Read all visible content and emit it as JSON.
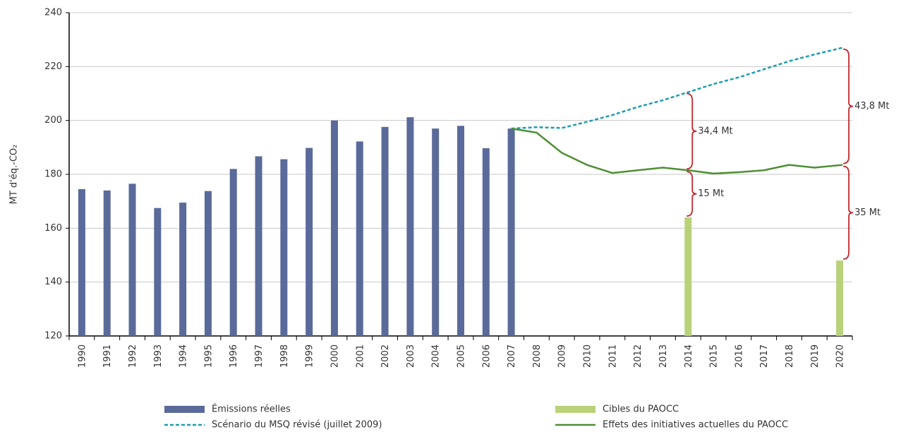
{
  "chart_data": {
    "type": "bar",
    "y_label": "MT d'éq.-CO₂",
    "categories": [
      "1990",
      "1991",
      "1992",
      "1993",
      "1994",
      "1995",
      "1996",
      "1997",
      "1998",
      "1999",
      "2000",
      "2001",
      "2002",
      "2003",
      "2004",
      "2005",
      "2006",
      "2007",
      "2008",
      "2009",
      "2010",
      "2011",
      "2012",
      "2013",
      "2014",
      "2015",
      "2016",
      "2017",
      "2018",
      "2019",
      "2020"
    ],
    "ylim": [
      120,
      240
    ],
    "yticks": [
      120,
      140,
      160,
      180,
      200,
      220,
      240
    ],
    "grid": true,
    "series": [
      {
        "name": "Émissions réelles",
        "kind": "bar",
        "color": "#5a6a9a",
        "values": [
          174.5,
          174,
          176.5,
          167.5,
          169.5,
          173.8,
          182,
          186.7,
          185.6,
          189.8,
          200,
          192.2,
          197.6,
          201.2,
          197,
          198,
          189.7,
          197,
          null,
          null,
          null,
          null,
          null,
          null,
          null,
          null,
          null,
          null,
          null,
          null,
          null
        ]
      },
      {
        "name": "Cibles du PAOCC",
        "kind": "bar",
        "color": "#b9d27a",
        "values": [
          null,
          null,
          null,
          null,
          null,
          null,
          null,
          null,
          null,
          null,
          null,
          null,
          null,
          null,
          null,
          null,
          null,
          null,
          null,
          null,
          null,
          null,
          null,
          null,
          164,
          null,
          null,
          null,
          null,
          null,
          148
        ]
      },
      {
        "name": "Scénario du MSQ révisé (juillet 2009)",
        "kind": "line",
        "dashed": true,
        "color": "#1e9db0",
        "values": [
          null,
          null,
          null,
          null,
          null,
          null,
          null,
          null,
          null,
          null,
          null,
          null,
          null,
          null,
          null,
          null,
          null,
          197,
          197.5,
          197.2,
          199.5,
          202,
          205,
          207.5,
          210.5,
          213.5,
          216,
          219,
          222,
          224.5,
          227
        ]
      },
      {
        "name": "Effets des initiatives actuelles du PAOCC",
        "kind": "line",
        "dashed": false,
        "color": "#4e8f35",
        "values": [
          null,
          null,
          null,
          null,
          null,
          null,
          null,
          null,
          null,
          null,
          null,
          null,
          null,
          null,
          null,
          null,
          null,
          197,
          195.5,
          188,
          183.5,
          180.5,
          181.5,
          182.5,
          181.5,
          180.3,
          180.8,
          181.5,
          183.5,
          182.5,
          183.5
        ]
      }
    ],
    "annotations": [
      {
        "text": "34,4 Mt",
        "category": "2014"
      },
      {
        "text": "15 Mt",
        "category": "2014"
      },
      {
        "text": "43,8 Mt",
        "category": "2020"
      },
      {
        "text": "35 Mt",
        "category": "2020"
      }
    ]
  }
}
